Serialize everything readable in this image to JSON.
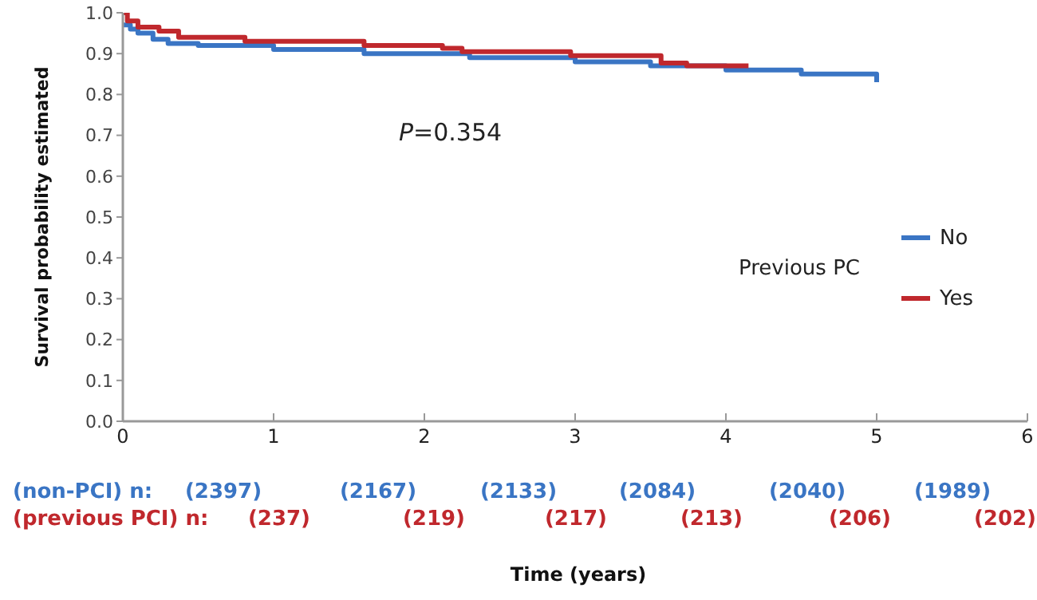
{
  "chart_data": {
    "type": "step",
    "ylabel": "Survival probability estimated",
    "legend_title": "Previous PC",
    "legend": "right",
    "xlim": [
      0,
      6
    ],
    "xticks": [
      0,
      1,
      2,
      3,
      4,
      5,
      6
    ],
    "ylim": [
      0,
      1
    ],
    "yticks": [
      {
        "value": 0,
        "label": "0.0"
      },
      0.1,
      0.2,
      0.3,
      0.4,
      0.5,
      0.6,
      0.7,
      0.8,
      0.9,
      {
        "value": 1,
        "label": "1.0"
      }
    ],
    "grid": false,
    "marker": "none",
    "line_style": "solid",
    "series": [
      {
        "name": "No",
        "color": "#3a75c4",
        "x": [
          0,
          0.05,
          0.1,
          0.2,
          0.3,
          0.5,
          1.0,
          1.6,
          2.3,
          3.0,
          3.5,
          4.0,
          4.5,
          5.0
        ],
        "values": [
          0.97,
          0.96,
          0.95,
          0.935,
          0.925,
          0.92,
          0.91,
          0.9,
          0.89,
          0.88,
          0.87,
          0.86,
          0.85,
          0.83
        ]
      },
      {
        "name": "Yes",
        "color": "#c0282d",
        "x": [
          0,
          0.03,
          0.1,
          0.24,
          0.37,
          0.81,
          1.6,
          2.12,
          2.25,
          2.97,
          3.57,
          3.74,
          4.15
        ],
        "values": [
          1.0,
          0.98,
          0.965,
          0.955,
          0.94,
          0.93,
          0.92,
          0.913,
          0.905,
          0.895,
          0.877,
          0.87,
          0.87
        ]
      }
    ],
    "annotations": [
      "P=0.354",
      "(non-PCI) n:",
      "(2397)",
      "(2167)",
      "(2133)",
      "(2084)",
      "(2040)",
      "(1989)",
      "(previous PCI) n:",
      "(237)",
      "(219)",
      "(217)",
      "(213)",
      "(206)",
      "(202)",
      "Time (years)"
    ]
  }
}
